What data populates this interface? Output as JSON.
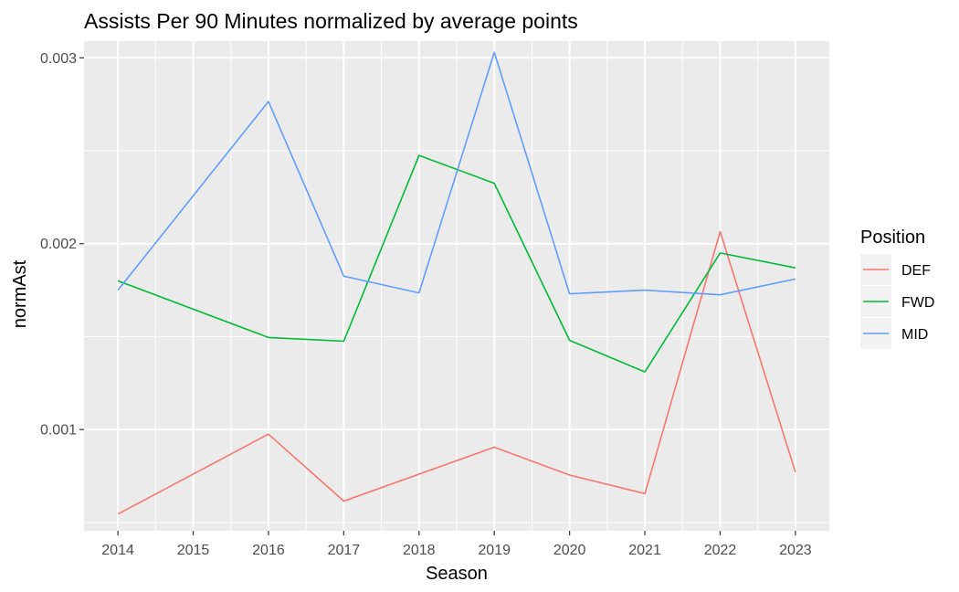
{
  "chart_data": {
    "type": "line",
    "title": "Assists Per 90 Minutes normalized by average points",
    "xlabel": "Season",
    "ylabel": "normAst",
    "x_tick_labels": [
      "2014",
      "2015",
      "2016",
      "2017",
      "2018",
      "2019",
      "2020",
      "2021",
      "2022",
      "2023"
    ],
    "y_tick_labels": [
      "0.001",
      "0.002",
      "0.003"
    ],
    "y_ticks": [
      0.001,
      0.002,
      0.003
    ],
    "xlim": [
      2013.55,
      2023.45
    ],
    "ylim": [
      0.000455,
      0.00309
    ],
    "grid": true,
    "legend": {
      "title": "Position",
      "position": "right"
    },
    "series": [
      {
        "name": "DEF",
        "color": "#F8766D",
        "x": [
          2014,
          2016,
          2017,
          2019,
          2020,
          2021,
          2022,
          2023
        ],
        "y": [
          0.000545,
          0.000975,
          0.000615,
          0.000905,
          0.000755,
          0.000655,
          0.002065,
          0.00077
        ]
      },
      {
        "name": "FWD",
        "color": "#00BA38",
        "x": [
          2014,
          2016,
          2017,
          2018,
          2019,
          2020,
          2021,
          2022,
          2023
        ],
        "y": [
          0.0018,
          0.001495,
          0.001475,
          0.002475,
          0.002325,
          0.00148,
          0.00131,
          0.00195,
          0.00187
        ]
      },
      {
        "name": "MID",
        "color": "#619CFF",
        "x": [
          2014,
          2016,
          2017,
          2018,
          2019,
          2020,
          2021,
          2022,
          2023
        ],
        "y": [
          0.00175,
          0.002765,
          0.001825,
          0.001735,
          0.00303,
          0.00173,
          0.00175,
          0.001725,
          0.00181
        ]
      }
    ]
  }
}
